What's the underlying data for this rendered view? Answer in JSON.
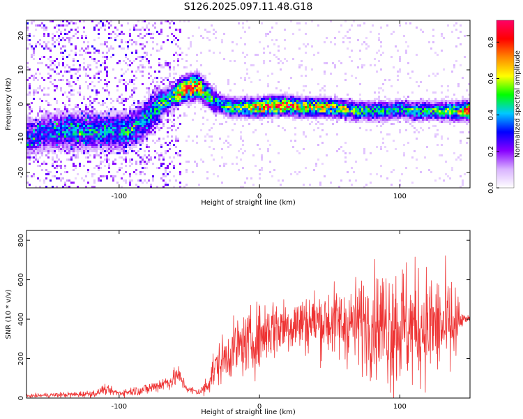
{
  "figure": {
    "title": "S126.2025.097.11.48.G18"
  },
  "chart_data": [
    {
      "type": "heatmap",
      "xlabel": "Height of straight line (km)",
      "ylabel": "Frequency (Hz)",
      "xlim": [
        -166,
        150
      ],
      "ylim": [
        -24.5,
        24.5
      ],
      "xticks": [
        -100,
        0,
        100
      ],
      "yticks": [
        -20,
        -10,
        0,
        10,
        20
      ],
      "colorbar": {
        "label": "Normalized spectral amplitude",
        "range": [
          0.0,
          0.92
        ],
        "ticks": [
          0.0,
          0.2,
          0.4,
          0.6,
          0.8
        ],
        "colors": [
          "#ffffff",
          "#d9b3ff",
          "#8800ff",
          "#0000ff",
          "#00c8ff",
          "#00ff00",
          "#ffff00",
          "#ff8800",
          "#ff0000",
          "#ff0066"
        ]
      },
      "ridge": {
        "x": [
          -166,
          -150,
          -130,
          -110,
          -95,
          -85,
          -78,
          -70,
          -62,
          -55,
          -48,
          -43,
          -38,
          -33,
          -28,
          -20,
          -10,
          0,
          10,
          20,
          30,
          40,
          50,
          60,
          70,
          80,
          90,
          100,
          110,
          120,
          130,
          140,
          150
        ],
        "frequency": [
          -10,
          -8,
          -8,
          -8,
          -8,
          -6,
          -3,
          0,
          2,
          4,
          5,
          5,
          3,
          1,
          0,
          -1,
          -1,
          -1,
          -0.5,
          -0.5,
          -1,
          -1,
          -1,
          -1.5,
          -2,
          -2,
          -2,
          -1.5,
          -2,
          -2,
          -2,
          -2,
          -2
        ],
        "peak_amplitude": [
          0.3,
          0.3,
          0.4,
          0.35,
          0.4,
          0.35,
          0.4,
          0.45,
          0.5,
          0.7,
          0.85,
          0.7,
          0.5,
          0.45,
          0.45,
          0.5,
          0.6,
          0.7,
          0.85,
          0.75,
          0.7,
          0.65,
          0.6,
          0.55,
          0.5,
          0.45,
          0.45,
          0.4,
          0.45,
          0.45,
          0.5,
          0.55,
          0.8
        ]
      }
    },
    {
      "type": "line",
      "xlabel": "Height of straight line (km)",
      "ylabel": "SNR (10 * v/v)",
      "xlim": [
        -166,
        150
      ],
      "ylim": [
        0,
        850
      ],
      "xticks": [
        -100,
        0,
        100
      ],
      "yticks": [
        0,
        200,
        400,
        600,
        800
      ],
      "series": [
        {
          "color": "#ee3333",
          "x": [
            -166,
            -150,
            -130,
            -115,
            -112,
            -100,
            -90,
            -80,
            -70,
            -62,
            -58,
            -55,
            -50,
            -42,
            -38,
            -35,
            -30,
            -25,
            -20,
            -15,
            -10,
            -5,
            0,
            5,
            10,
            20,
            30,
            40,
            50,
            60,
            70,
            80,
            90,
            95,
            100,
            110,
            120,
            130,
            140,
            143,
            145,
            150
          ],
          "mean": [
            10,
            15,
            18,
            25,
            45,
            25,
            35,
            45,
            70,
            90,
            120,
            80,
            40,
            30,
            60,
            110,
            170,
            200,
            240,
            260,
            270,
            290,
            310,
            340,
            360,
            370,
            380,
            390,
            385,
            375,
            380,
            385,
            380,
            380,
            370,
            360,
            370,
            360,
            360,
            380,
            400,
            400
          ],
          "spread": [
            5,
            8,
            10,
            12,
            15,
            12,
            15,
            20,
            25,
            30,
            35,
            25,
            15,
            12,
            40,
            60,
            70,
            80,
            90,
            100,
            100,
            110,
            110,
            110,
            110,
            100,
            100,
            110,
            120,
            130,
            150,
            170,
            200,
            250,
            230,
            200,
            190,
            180,
            170,
            60,
            15,
            12
          ]
        }
      ]
    }
  ]
}
